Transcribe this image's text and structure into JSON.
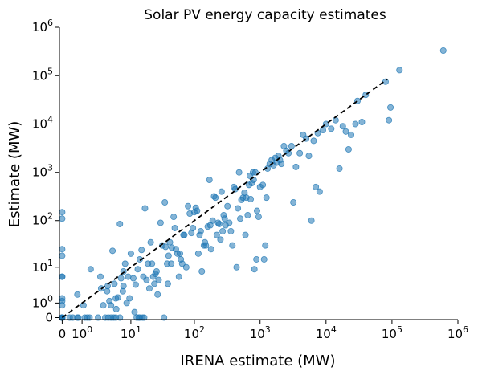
{
  "chart_data": {
    "type": "scatter",
    "title": "Solar PV energy capacity estimates",
    "xlabel": "IRENA estimate (MW)",
    "ylabel": "Estimate (MW)",
    "scale": "symlog",
    "xlim": [
      -0.1,
      1000000
    ],
    "ylim": [
      -0.1,
      1000000
    ],
    "grid": false,
    "x_ticks": [
      {
        "value": 0,
        "base": "0",
        "exp": ""
      },
      {
        "value": 1,
        "base": "10",
        "exp": "0"
      },
      {
        "value": 10,
        "base": "10",
        "exp": "1"
      },
      {
        "value": 100,
        "base": "10",
        "exp": "2"
      },
      {
        "value": 1000,
        "base": "10",
        "exp": "3"
      },
      {
        "value": 10000,
        "base": "10",
        "exp": "4"
      },
      {
        "value": 100000,
        "base": "10",
        "exp": "5"
      },
      {
        "value": 1000000,
        "base": "10",
        "exp": "6"
      }
    ],
    "y_ticks": [
      {
        "value": 0,
        "base": "0",
        "exp": ""
      },
      {
        "value": 1,
        "base": "10",
        "exp": "0"
      },
      {
        "value": 10,
        "base": "10",
        "exp": "1"
      },
      {
        "value": 100,
        "base": "10",
        "exp": "2"
      },
      {
        "value": 1000,
        "base": "10",
        "exp": "3"
      },
      {
        "value": 10000,
        "base": "10",
        "exp": "4"
      },
      {
        "value": 100000,
        "base": "10",
        "exp": "5"
      },
      {
        "value": 1000000,
        "base": "10",
        "exp": "6"
      }
    ],
    "reference_line": {
      "from": 0,
      "to": 85000,
      "style": "dashed",
      "color": "#000000"
    },
    "marker_color": "#1f77b4",
    "points": [
      [
        0,
        150
      ],
      [
        0,
        110
      ],
      [
        0,
        25
      ],
      [
        0,
        18
      ],
      [
        0,
        6
      ],
      [
        0,
        6
      ],
      [
        0,
        1.5
      ],
      [
        0,
        1.2
      ],
      [
        0,
        0.8
      ],
      [
        0,
        0
      ],
      [
        0,
        0
      ],
      [
        0,
        0
      ],
      [
        0,
        0
      ],
      [
        0,
        0
      ],
      [
        0,
        0
      ],
      [
        0.3,
        0
      ],
      [
        0.45,
        0
      ],
      [
        0.7,
        0
      ],
      [
        0.75,
        0
      ],
      [
        1.2,
        0
      ],
      [
        1.4,
        0
      ],
      [
        1.6,
        0
      ],
      [
        0.7,
        2
      ],
      [
        1.1,
        0.8
      ],
      [
        1.7,
        9
      ],
      [
        2.5,
        0
      ],
      [
        3.5,
        0
      ],
      [
        4,
        0
      ],
      [
        4.5,
        0
      ],
      [
        5,
        0
      ],
      [
        5.5,
        0
      ],
      [
        6.5,
        0
      ],
      [
        2.8,
        6
      ],
      [
        2.9,
        3
      ],
      [
        3.2,
        0.8
      ],
      [
        3.8,
        2.5
      ],
      [
        3.9,
        3.5
      ],
      [
        4.2,
        1.2
      ],
      [
        4.5,
        0.8
      ],
      [
        4.8,
        23
      ],
      [
        5.2,
        4
      ],
      [
        5.5,
        1.5
      ],
      [
        5.6,
        0.5
      ],
      [
        6,
        1.6
      ],
      [
        6.5,
        85
      ],
      [
        6.8,
        5.5
      ],
      [
        7.3,
        2.5
      ],
      [
        7.5,
        3.5
      ],
      [
        8.5,
        1
      ],
      [
        9.5,
        1.5
      ],
      [
        11.5,
        0.3
      ],
      [
        12.5,
        0
      ],
      [
        13.5,
        0
      ],
      [
        14,
        0
      ],
      [
        15.5,
        0
      ],
      [
        16.5,
        0
      ],
      [
        7.5,
        8
      ],
      [
        8,
        12
      ],
      [
        9,
        6
      ],
      [
        10,
        20
      ],
      [
        11,
        5.5
      ],
      [
        12,
        3.8
      ],
      [
        13,
        9
      ],
      [
        14,
        15
      ],
      [
        15,
        24
      ],
      [
        16,
        6
      ],
      [
        17,
        180
      ],
      [
        18,
        5
      ],
      [
        19,
        12
      ],
      [
        20,
        3
      ],
      [
        21,
        35
      ],
      [
        22,
        12
      ],
      [
        23,
        6
      ],
      [
        24,
        4
      ],
      [
        25,
        7
      ],
      [
        26,
        8
      ],
      [
        27,
        2
      ],
      [
        28,
        5
      ],
      [
        30,
        90
      ],
      [
        32,
        30
      ],
      [
        34,
        0
      ],
      [
        35,
        240
      ],
      [
        36,
        28
      ],
      [
        38,
        12
      ],
      [
        39,
        4
      ],
      [
        40,
        18
      ],
      [
        42,
        35
      ],
      [
        44,
        12
      ],
      [
        45,
        27
      ],
      [
        48,
        120
      ],
      [
        50,
        70
      ],
      [
        52,
        25
      ],
      [
        55,
        20
      ],
      [
        58,
        6
      ],
      [
        60,
        20
      ],
      [
        62,
        15
      ],
      [
        65,
        12
      ],
      [
        68,
        50
      ],
      [
        70,
        50
      ],
      [
        75,
        10
      ],
      [
        80,
        200
      ],
      [
        85,
        140
      ],
      [
        90,
        55
      ],
      [
        95,
        70
      ],
      [
        100,
        150
      ],
      [
        105,
        185
      ],
      [
        110,
        160
      ],
      [
        115,
        20
      ],
      [
        120,
        50
      ],
      [
        125,
        60
      ],
      [
        130,
        8
      ],
      [
        140,
        30
      ],
      [
        145,
        35
      ],
      [
        150,
        30
      ],
      [
        160,
        75
      ],
      [
        170,
        700
      ],
      [
        175,
        80
      ],
      [
        180,
        25
      ],
      [
        190,
        100
      ],
      [
        200,
        320
      ],
      [
        210,
        300
      ],
      [
        220,
        50
      ],
      [
        230,
        90
      ],
      [
        240,
        85
      ],
      [
        250,
        40
      ],
      [
        260,
        400
      ],
      [
        270,
        60
      ],
      [
        280,
        130
      ],
      [
        290,
        110
      ],
      [
        300,
        80
      ],
      [
        320,
        200
      ],
      [
        340,
        90
      ],
      [
        360,
        60
      ],
      [
        380,
        30
      ],
      [
        400,
        500
      ],
      [
        420,
        450
      ],
      [
        440,
        10
      ],
      [
        460,
        180
      ],
      [
        480,
        1000
      ],
      [
        500,
        110
      ],
      [
        520,
        270
      ],
      [
        550,
        300
      ],
      [
        580,
        380
      ],
      [
        600,
        50
      ],
      [
        620,
        300
      ],
      [
        650,
        130
      ],
      [
        680,
        550
      ],
      [
        700,
        850
      ],
      [
        720,
        280
      ],
      [
        750,
        600
      ],
      [
        780,
        1000
      ],
      [
        800,
        700
      ],
      [
        820,
        9
      ],
      [
        850,
        1000
      ],
      [
        880,
        15
      ],
      [
        900,
        160
      ],
      [
        950,
        120
      ],
      [
        1000,
        500
      ],
      [
        1100,
        550
      ],
      [
        1150,
        15
      ],
      [
        1200,
        30
      ],
      [
        1250,
        300
      ],
      [
        1300,
        1200
      ],
      [
        1400,
        1500
      ],
      [
        1500,
        1800
      ],
      [
        1600,
        1400
      ],
      [
        1700,
        2000
      ],
      [
        1800,
        1600
      ],
      [
        1900,
        2200
      ],
      [
        2000,
        1800
      ],
      [
        2100,
        1500
      ],
      [
        2300,
        3500
      ],
      [
        2500,
        2800
      ],
      [
        2700,
        2500
      ],
      [
        3000,
        3500
      ],
      [
        3200,
        240
      ],
      [
        3500,
        1300
      ],
      [
        4000,
        2500
      ],
      [
        4500,
        6000
      ],
      [
        5000,
        5000
      ],
      [
        5500,
        2200
      ],
      [
        6000,
        100
      ],
      [
        6500,
        4500
      ],
      [
        7000,
        500
      ],
      [
        7500,
        6500
      ],
      [
        8000,
        400
      ],
      [
        9000,
        7500
      ],
      [
        10000,
        10000
      ],
      [
        12000,
        8000
      ],
      [
        14000,
        12000
      ],
      [
        16000,
        1200
      ],
      [
        18000,
        9000
      ],
      [
        20000,
        7000
      ],
      [
        22000,
        3000
      ],
      [
        24000,
        6000
      ],
      [
        28000,
        10000
      ],
      [
        30000,
        30000
      ],
      [
        35000,
        11000
      ],
      [
        40000,
        40000
      ],
      [
        80000,
        75000
      ],
      [
        90000,
        12000
      ],
      [
        95000,
        22000
      ],
      [
        130000,
        130000
      ],
      [
        600000,
        330000
      ]
    ]
  }
}
